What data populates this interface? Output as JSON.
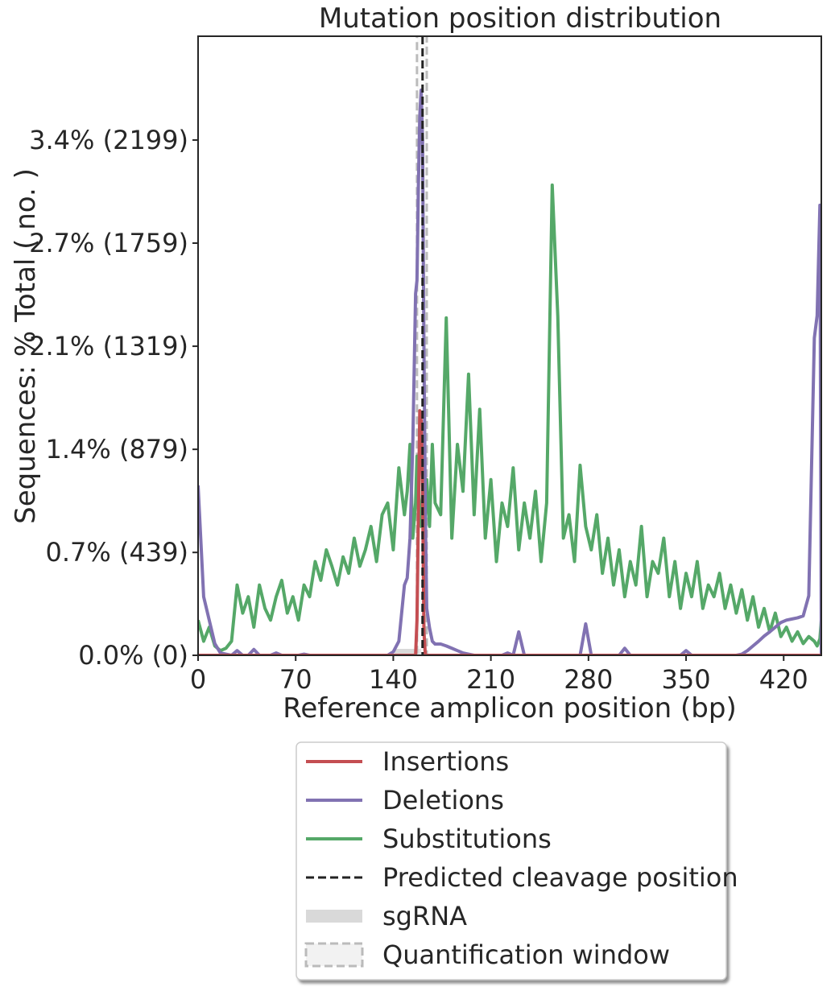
{
  "chart_data": {
    "type": "line",
    "title": "Mutation position distribution",
    "xlabel": "Reference amplicon position (bp)",
    "ylabel": "Sequences: % Total ( no. )",
    "x": [
      0,
      4,
      8,
      12,
      16,
      20,
      24,
      28,
      32,
      36,
      40,
      44,
      48,
      52,
      56,
      60,
      64,
      68,
      72,
      76,
      80,
      84,
      88,
      92,
      96,
      100,
      104,
      108,
      112,
      116,
      120,
      124,
      128,
      132,
      136,
      140,
      144,
      148,
      150,
      152,
      154,
      156,
      157,
      158,
      159,
      160,
      161,
      162,
      163,
      164,
      166,
      168,
      170,
      174,
      178,
      182,
      186,
      190,
      194,
      198,
      202,
      206,
      210,
      214,
      218,
      222,
      226,
      230,
      234,
      238,
      242,
      246,
      250,
      254,
      258,
      262,
      266,
      270,
      274,
      278,
      282,
      286,
      290,
      294,
      298,
      302,
      306,
      310,
      314,
      318,
      322,
      326,
      330,
      334,
      338,
      342,
      346,
      350,
      354,
      358,
      362,
      366,
      370,
      374,
      378,
      382,
      386,
      390,
      394,
      398,
      402,
      406,
      410,
      414,
      418,
      422,
      426,
      430,
      434,
      438,
      442,
      444,
      446,
      447
    ],
    "series": [
      {
        "name": "Substitutions",
        "color": "#55a868",
        "values": [
          150,
          60,
          120,
          40,
          20,
          30,
          60,
          300,
          180,
          250,
          120,
          300,
          200,
          150,
          250,
          320,
          180,
          250,
          150,
          300,
          250,
          400,
          320,
          450,
          380,
          300,
          420,
          350,
          500,
          380,
          450,
          550,
          400,
          600,
          650,
          450,
          800,
          600,
          700,
          900,
          500,
          650,
          850,
          700,
          600,
          550,
          700,
          850,
          600,
          750,
          550,
          900,
          650,
          600,
          1440,
          500,
          900,
          700,
          1200,
          600,
          1050,
          500,
          750,
          400,
          650,
          550,
          800,
          450,
          650,
          500,
          700,
          400,
          650,
          2007,
          1447,
          500,
          600,
          400,
          811,
          550,
          450,
          600,
          350,
          500,
          300,
          450,
          250,
          400,
          300,
          550,
          250,
          400,
          350,
          500,
          250,
          400,
          200,
          350,
          250,
          400,
          200,
          300,
          250,
          350,
          200,
          300,
          180,
          280,
          150,
          250,
          120,
          200,
          100,
          180,
          80,
          120,
          60,
          100,
          50,
          80,
          60,
          40,
          70,
          150
        ]
      },
      {
        "name": "Deletions",
        "color": "#8172b2",
        "values": [
          725,
          250,
          150,
          50,
          10,
          5,
          0,
          20,
          0,
          0,
          25,
          0,
          0,
          0,
          10,
          0,
          0,
          0,
          0,
          5,
          0,
          0,
          0,
          0,
          0,
          0,
          0,
          0,
          0,
          0,
          0,
          0,
          0,
          0,
          0,
          15,
          60,
          300,
          330,
          500,
          900,
          1543,
          1600,
          2000,
          2300,
          2412,
          2200,
          1300,
          600,
          200,
          117,
          60,
          48,
          48,
          40,
          30,
          20,
          10,
          5,
          0,
          0,
          0,
          0,
          0,
          0,
          10,
          0,
          100,
          0,
          0,
          0,
          0,
          0,
          0,
          0,
          0,
          0,
          0,
          0,
          134,
          0,
          0,
          0,
          0,
          0,
          0,
          30,
          0,
          0,
          0,
          0,
          0,
          0,
          0,
          0,
          0,
          0,
          20,
          0,
          0,
          0,
          0,
          0,
          0,
          0,
          0,
          0,
          5,
          20,
          40,
          60,
          82,
          100,
          120,
          140,
          150,
          155,
          160,
          168,
          254,
          1354,
          1450,
          1921,
          0
        ]
      },
      {
        "name": "Insertions",
        "color": "#c44e52",
        "values": [
          0,
          0,
          0,
          0,
          0,
          0,
          0,
          0,
          0,
          0,
          0,
          0,
          0,
          0,
          0,
          0,
          0,
          0,
          0,
          0,
          0,
          0,
          0,
          0,
          0,
          0,
          0,
          0,
          0,
          0,
          0,
          0,
          0,
          0,
          0,
          0,
          0,
          0,
          0,
          0,
          0,
          0,
          150,
          600,
          1044,
          1000,
          700,
          100,
          0,
          0,
          0,
          0,
          0,
          0,
          0,
          0,
          0,
          0,
          0,
          0,
          0,
          0,
          0,
          0,
          0,
          0,
          0,
          0,
          0,
          0,
          0,
          0,
          0,
          0,
          0,
          0,
          0,
          0,
          0,
          0,
          0,
          0,
          0,
          0,
          0,
          0,
          0,
          0,
          0,
          0,
          0,
          0,
          0,
          0,
          0,
          0,
          0,
          0,
          0,
          0,
          0,
          0,
          0,
          0,
          0,
          0,
          0,
          0,
          0,
          0,
          0,
          0,
          0,
          0,
          0,
          0,
          0,
          0,
          0,
          0,
          0,
          0,
          0,
          0
        ]
      }
    ],
    "legend_order": [
      2,
      1,
      0
    ],
    "cleavage": {
      "name": "Predicted cleavage position",
      "x": 161,
      "color": "#222222"
    },
    "sgrna": {
      "name": "sgRNA",
      "x": [
        141,
        160
      ],
      "color": "#d9d9d9"
    },
    "quantification_window": {
      "name": "Quantification window",
      "x": [
        157,
        164
      ],
      "color": "#bbbbbb"
    },
    "xlim": [
      0,
      447
    ],
    "ylim": [
      0,
      2642
    ],
    "xticks": [
      0,
      70,
      140,
      210,
      280,
      350,
      420
    ],
    "yticks": [
      {
        "value": 0,
        "label": "0.0% (0)"
      },
      {
        "value": 439,
        "label": "0.7% (439)"
      },
      {
        "value": 879,
        "label": "1.4% (879)"
      },
      {
        "value": 1319,
        "label": "2.1% (1319)"
      },
      {
        "value": 1759,
        "label": "2.7% (1759)"
      },
      {
        "value": 2199,
        "label": "3.4% (2199)"
      }
    ],
    "grid": false
  }
}
